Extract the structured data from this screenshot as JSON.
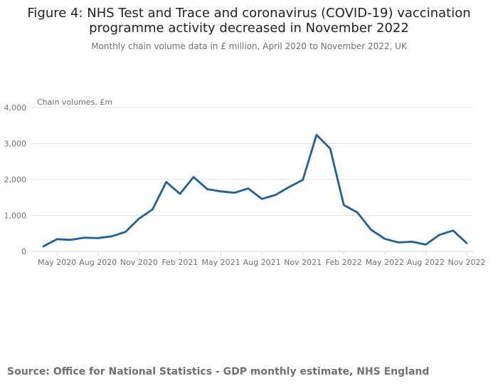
{
  "title_line1": "Figure 4: NHS Test and Trace and coronavirus (COVID-19) vaccination",
  "title_line2": "programme activity decreased in November 2022",
  "subtitle": "Monthly chain volume data in £ million, April 2020 to November 2022, UK",
  "source": "Source: Office for National Statistics - GDP monthly estimate, NHS England",
  "colors": {
    "line": "#206095",
    "grid": "#e3e3e3",
    "axis": "#d9d9d9",
    "tick_text": "#707070"
  },
  "chart_data": {
    "type": "line",
    "title": "Figure 4: NHS Test and Trace and coronavirus (COVID-19) vaccination programme activity decreased in November 2022",
    "subtitle": "Monthly chain volume data in £ million, April 2020 to November 2022, UK",
    "ylabel": "Chain volumes, £m",
    "xlabel": "",
    "ylim": [
      0,
      4000
    ],
    "yticks": [
      0,
      1000,
      2000,
      3000,
      4000
    ],
    "ytick_labels": [
      "0",
      "1,000",
      "2,000",
      "3,000",
      "4,000"
    ],
    "xtick_labels": [
      "May 2020",
      "Aug 2020",
      "Nov 2020",
      "Feb 2021",
      "May 2021",
      "Aug 2021",
      "Nov 2021",
      "Feb 2022",
      "May 2022",
      "Aug 2022",
      "Nov 2022"
    ],
    "grid": true,
    "legend": "none",
    "categories": [
      "Apr 2020",
      "May 2020",
      "Jun 2020",
      "Jul 2020",
      "Aug 2020",
      "Sep 2020",
      "Oct 2020",
      "Nov 2020",
      "Dec 2020",
      "Jan 2021",
      "Feb 2021",
      "Mar 2021",
      "Apr 2021",
      "May 2021",
      "Jun 2021",
      "Jul 2021",
      "Aug 2021",
      "Sep 2021",
      "Oct 2021",
      "Nov 2021",
      "Dec 2021",
      "Jan 2022",
      "Feb 2022",
      "Mar 2022",
      "Apr 2022",
      "May 2022",
      "Jun 2022",
      "Jul 2022",
      "Aug 2022",
      "Sep 2022",
      "Oct 2022",
      "Nov 2022"
    ],
    "series": [
      {
        "name": "Chain volumes, £m",
        "values": [
          140,
          340,
          320,
          380,
          370,
          420,
          540,
          910,
          1170,
          1930,
          1600,
          2070,
          1730,
          1670,
          1630,
          1750,
          1460,
          1570,
          1790,
          1990,
          3240,
          2860,
          1290,
          1080,
          600,
          350,
          250,
          270,
          190,
          460,
          580,
          230
        ]
      }
    ]
  }
}
